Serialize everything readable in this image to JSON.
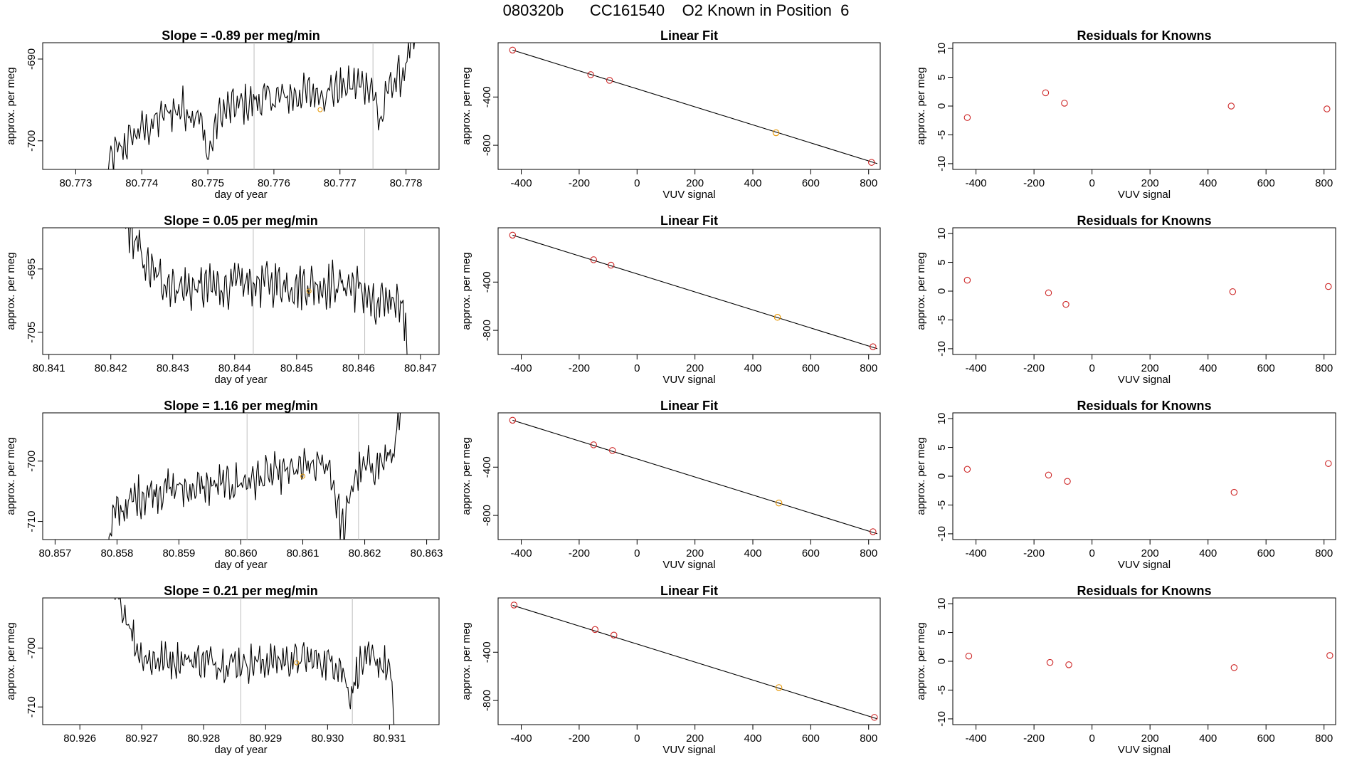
{
  "page": {
    "title": "080320b      CC161540    O2 Known in Position  6"
  },
  "colors": {
    "line": "#000000",
    "axis": "#000000",
    "vline": "#bebebe",
    "known_point": "#cd2626",
    "unknown_point": "#e69500"
  },
  "chart_data": [
    {
      "type": "line",
      "row": 0,
      "col": 0,
      "title": "Slope =  -0.89  per meg/min",
      "xlabel": "day of year",
      "ylabel": "approx. per meg",
      "xlim": [
        80.7725,
        80.7785
      ],
      "ylim": [
        -703.5,
        -688
      ],
      "xticks": [
        80.773,
        80.774,
        80.775,
        80.776,
        80.777,
        80.778
      ],
      "xtick_labels": [
        "80.773",
        "80.774",
        "80.775",
        "80.776",
        "80.777",
        "80.778"
      ],
      "yticks": [
        -690,
        -700
      ],
      "ytick_labels": [
        "-690",
        "-700"
      ],
      "vlines": [
        80.7757,
        80.7775
      ],
      "orange_point": [
        80.7767,
        -696.2
      ],
      "x_start": 80.77345,
      "x_end": 80.77818,
      "series": [
        {
          "name": "trace",
          "profile": [
            [
              0,
              -705
            ],
            [
              0.02,
              -702
            ],
            [
              0.05,
              -701
            ],
            [
              0.1,
              -699
            ],
            [
              0.15,
              -698
            ],
            [
              0.2,
              -696.5
            ],
            [
              0.25,
              -696
            ],
            [
              0.3,
              -697
            ],
            [
              0.33,
              -702
            ],
            [
              0.36,
              -697
            ],
            [
              0.4,
              -696
            ],
            [
              0.45,
              -695.5
            ],
            [
              0.5,
              -695
            ],
            [
              0.55,
              -694.8
            ],
            [
              0.6,
              -694.5
            ],
            [
              0.65,
              -694.2
            ],
            [
              0.7,
              -694
            ],
            [
              0.75,
              -693.5
            ],
            [
              0.8,
              -693.2
            ],
            [
              0.85,
              -693
            ],
            [
              0.88,
              -698
            ],
            [
              0.91,
              -693
            ],
            [
              0.95,
              -692
            ],
            [
              0.97,
              -690
            ],
            [
              1.0,
              -686
            ]
          ],
          "amplitude": 2.2
        }
      ]
    },
    {
      "type": "scatter",
      "row": 0,
      "col": 1,
      "title": "Linear Fit",
      "xlabel": "VUV signal",
      "ylabel": "approx. per meg",
      "xlim": [
        -480,
        840
      ],
      "ylim": [
        -1000,
        50
      ],
      "xticks": [
        -400,
        -200,
        0,
        200,
        400,
        600,
        800
      ],
      "xtick_labels": [
        "-400",
        "-200",
        "0",
        "200",
        "400",
        "600",
        "800"
      ],
      "yticks": [
        -400,
        -800
      ],
      "ytick_labels": [
        "-400",
        "-800"
      ],
      "fit_line": {
        "x": [
          -430,
          830
        ],
        "y": [
          -11,
          -952
        ]
      },
      "points_x": [
        -430,
        -160,
        -95,
        480,
        810
      ],
      "points_y": [
        -11,
        -215,
        -262,
        -696,
        -942
      ],
      "point_colors": [
        "known",
        "known",
        "known",
        "unknown",
        "known"
      ]
    },
    {
      "type": "scatter",
      "row": 0,
      "col": 2,
      "title": "Residuals for Knowns",
      "xlabel": "VUV signal",
      "ylabel": "approx. per meg",
      "xlim": [
        -480,
        840
      ],
      "ylim": [
        -11,
        11
      ],
      "xticks": [
        -400,
        -200,
        0,
        200,
        400,
        600,
        800
      ],
      "xtick_labels": [
        "-400",
        "-200",
        "0",
        "200",
        "400",
        "600",
        "800"
      ],
      "yticks": [
        10,
        5,
        0,
        -5,
        -10
      ],
      "ytick_labels": [
        "10",
        "5",
        "0",
        "-5",
        "-10"
      ],
      "points_x": [
        -430,
        -160,
        -95,
        480,
        810
      ],
      "points_y": [
        -2.0,
        2.3,
        0.5,
        0.0,
        -0.5
      ]
    },
    {
      "type": "line",
      "row": 1,
      "col": 0,
      "title": "Slope =  0.05  per meg/min",
      "xlabel": "day of year",
      "ylabel": "approx. per meg",
      "xlim": [
        80.8409,
        80.8473
      ],
      "ylim": [
        -708.5,
        -688.5
      ],
      "xticks": [
        80.841,
        80.842,
        80.843,
        80.844,
        80.845,
        80.846,
        80.847
      ],
      "xtick_labels": [
        "80.841",
        "80.842",
        "80.843",
        "80.844",
        "80.845",
        "80.846",
        "80.847"
      ],
      "yticks": [
        -695,
        -705
      ],
      "ytick_labels": [
        "-695",
        "-705"
      ],
      "vlines": [
        80.8443,
        80.8461
      ],
      "orange_point": [
        80.8452,
        -698.5
      ],
      "x_start": 80.84222,
      "x_end": 80.84682,
      "series": [
        {
          "name": "trace",
          "profile": [
            [
              0,
              -687
            ],
            [
              0.02,
              -689
            ],
            [
              0.04,
              -691
            ],
            [
              0.07,
              -694
            ],
            [
              0.1,
              -696
            ],
            [
              0.15,
              -697
            ],
            [
              0.2,
              -698
            ],
            [
              0.3,
              -698
            ],
            [
              0.4,
              -697.5
            ],
            [
              0.5,
              -697
            ],
            [
              0.6,
              -697.5
            ],
            [
              0.7,
              -697.5
            ],
            [
              0.8,
              -697.5
            ],
            [
              0.85,
              -699
            ],
            [
              0.88,
              -702
            ],
            [
              0.92,
              -700
            ],
            [
              0.96,
              -699
            ],
            [
              0.98,
              -702
            ],
            [
              1.0,
              -712
            ]
          ],
          "amplitude": 3.2
        }
      ]
    },
    {
      "type": "scatter",
      "row": 1,
      "col": 1,
      "title": "Linear Fit",
      "xlabel": "VUV signal",
      "ylabel": "approx. per meg",
      "xlim": [
        -480,
        840
      ],
      "ylim": [
        -1000,
        50
      ],
      "xticks": [
        -400,
        -200,
        0,
        200,
        400,
        600,
        800
      ],
      "xtick_labels": [
        "-400",
        "-200",
        "0",
        "200",
        "400",
        "600",
        "800"
      ],
      "yticks": [
        -400,
        -800
      ],
      "ytick_labels": [
        "-400",
        "-800"
      ],
      "fit_line": {
        "x": [
          -430,
          830
        ],
        "y": [
          -11,
          -952
        ]
      },
      "points_x": [
        -430,
        -150,
        -90,
        485,
        815
      ],
      "points_y": [
        -11,
        -215,
        -260,
        -692,
        -936
      ],
      "point_colors": [
        "known",
        "known",
        "known",
        "unknown",
        "known"
      ]
    },
    {
      "type": "scatter",
      "row": 1,
      "col": 2,
      "title": "Residuals for Knowns",
      "xlabel": "VUV signal",
      "ylabel": "approx. per meg",
      "xlim": [
        -480,
        840
      ],
      "ylim": [
        -11,
        11
      ],
      "xticks": [
        -400,
        -200,
        0,
        200,
        400,
        600,
        800
      ],
      "xtick_labels": [
        "-400",
        "-200",
        "0",
        "200",
        "400",
        "600",
        "800"
      ],
      "yticks": [
        10,
        5,
        0,
        -5,
        -10
      ],
      "ytick_labels": [
        "10",
        "5",
        "0",
        "-5",
        "-10"
      ],
      "points_x": [
        -430,
        -150,
        -90,
        485,
        815
      ],
      "points_y": [
        1.9,
        -0.3,
        -2.3,
        -0.1,
        0.8
      ]
    },
    {
      "type": "line",
      "row": 2,
      "col": 0,
      "title": "Slope =  1.16  per meg/min",
      "xlabel": "day of year",
      "ylabel": "approx. per meg",
      "xlim": [
        80.8568,
        80.8632
      ],
      "ylim": [
        -713,
        -692
      ],
      "xticks": [
        80.857,
        80.858,
        80.859,
        80.86,
        80.861,
        80.862,
        80.863
      ],
      "xtick_labels": [
        "80.857",
        "80.858",
        "80.859",
        "80.860",
        "80.861",
        "80.862",
        "80.863"
      ],
      "yticks": [
        -700,
        -710
      ],
      "ytick_labels": [
        "-700",
        "-710"
      ],
      "vlines": [
        80.8601,
        80.8619
      ],
      "orange_point": [
        80.861,
        -702.5
      ],
      "x_start": 80.85785,
      "x_end": 80.86262,
      "series": [
        {
          "name": "trace",
          "profile": [
            [
              0,
              -715
            ],
            [
              0.02,
              -709
            ],
            [
              0.05,
              -708
            ],
            [
              0.1,
              -706
            ],
            [
              0.15,
              -705
            ],
            [
              0.2,
              -704.5
            ],
            [
              0.3,
              -704.5
            ],
            [
              0.4,
              -704
            ],
            [
              0.5,
              -703
            ],
            [
              0.6,
              -702
            ],
            [
              0.7,
              -701
            ],
            [
              0.75,
              -700.5
            ],
            [
              0.78,
              -708
            ],
            [
              0.8,
              -712
            ],
            [
              0.83,
              -703
            ],
            [
              0.88,
              -701
            ],
            [
              0.94,
              -700
            ],
            [
              0.97,
              -698
            ],
            [
              1.0,
              -690
            ]
          ],
          "amplitude": 3.0
        }
      ]
    },
    {
      "type": "scatter",
      "row": 2,
      "col": 1,
      "title": "Linear Fit",
      "xlabel": "VUV signal",
      "ylabel": "approx. per meg",
      "xlim": [
        -480,
        840
      ],
      "ylim": [
        -1000,
        50
      ],
      "xticks": [
        -400,
        -200,
        0,
        200,
        400,
        600,
        800
      ],
      "xtick_labels": [
        "-400",
        "-200",
        "0",
        "200",
        "400",
        "600",
        "800"
      ],
      "yticks": [
        -400,
        -800
      ],
      "ytick_labels": [
        "-400",
        "-800"
      ],
      "fit_line": {
        "x": [
          -430,
          830
        ],
        "y": [
          -11,
          -952
        ]
      },
      "points_x": [
        -430,
        -150,
        -85,
        490,
        815
      ],
      "points_y": [
        -11,
        -215,
        -262,
        -697,
        -935
      ],
      "point_colors": [
        "known",
        "known",
        "known",
        "unknown",
        "known"
      ]
    },
    {
      "type": "scatter",
      "row": 2,
      "col": 2,
      "title": "Residuals for Knowns",
      "xlabel": "VUV signal",
      "ylabel": "approx. per meg",
      "xlim": [
        -480,
        840
      ],
      "ylim": [
        -11,
        11
      ],
      "xticks": [
        -400,
        -200,
        0,
        200,
        400,
        600,
        800
      ],
      "xtick_labels": [
        "-400",
        "-200",
        "0",
        "200",
        "400",
        "600",
        "800"
      ],
      "yticks": [
        10,
        5,
        0,
        -5,
        -10
      ],
      "ytick_labels": [
        "10",
        "5",
        "0",
        "-5",
        "-10"
      ],
      "points_x": [
        -430,
        -150,
        -85,
        490,
        815
      ],
      "points_y": [
        1.2,
        0.2,
        -0.9,
        -2.8,
        2.2
      ]
    },
    {
      "type": "line",
      "row": 3,
      "col": 0,
      "title": "Slope =  0.21  per meg/min",
      "xlabel": "day of year",
      "ylabel": "approx. per meg",
      "xlim": [
        80.9254,
        80.9318
      ],
      "ylim": [
        -713,
        -691.5
      ],
      "xticks": [
        80.926,
        80.927,
        80.928,
        80.929,
        80.93,
        80.931
      ],
      "xtick_labels": [
        "80.926",
        "80.927",
        "80.928",
        "80.929",
        "80.930",
        "80.931"
      ],
      "yticks": [
        -700,
        -710
      ],
      "ytick_labels": [
        "-700",
        "-710"
      ],
      "vlines": [
        80.9286,
        80.9304
      ],
      "orange_point": [
        80.9295,
        -702.5
      ],
      "x_start": 80.92655,
      "x_end": 80.9311,
      "series": [
        {
          "name": "trace",
          "profile": [
            [
              0,
              -690
            ],
            [
              0.02,
              -692
            ],
            [
              0.05,
              -695
            ],
            [
              0.08,
              -700
            ],
            [
              0.12,
              -702
            ],
            [
              0.2,
              -702
            ],
            [
              0.3,
              -702
            ],
            [
              0.4,
              -702.5
            ],
            [
              0.5,
              -702.5
            ],
            [
              0.6,
              -702
            ],
            [
              0.7,
              -702
            ],
            [
              0.8,
              -702.5
            ],
            [
              0.84,
              -708
            ],
            [
              0.87,
              -703
            ],
            [
              0.92,
              -702
            ],
            [
              0.96,
              -703
            ],
            [
              0.98,
              -704
            ],
            [
              1.0,
              -716
            ]
          ],
          "amplitude": 2.8
        }
      ]
    },
    {
      "type": "scatter",
      "row": 3,
      "col": 1,
      "title": "Linear Fit",
      "xlabel": "VUV signal",
      "ylabel": "approx. per meg",
      "xlim": [
        -480,
        840
      ],
      "ylim": [
        -1000,
        50
      ],
      "xticks": [
        -400,
        -200,
        0,
        200,
        400,
        600,
        800
      ],
      "xtick_labels": [
        "-400",
        "-200",
        "0",
        "200",
        "400",
        "600",
        "800"
      ],
      "yticks": [
        -400,
        -800
      ],
      "ytick_labels": [
        "-400",
        "-800"
      ],
      "fit_line": {
        "x": [
          -430,
          830
        ],
        "y": [
          -11,
          -952
        ]
      },
      "points_x": [
        -425,
        -145,
        -80,
        490,
        820
      ],
      "points_y": [
        -9,
        -212,
        -258,
        -693,
        -940
      ],
      "point_colors": [
        "known",
        "known",
        "known",
        "unknown",
        "known"
      ]
    },
    {
      "type": "scatter",
      "row": 3,
      "col": 2,
      "title": "Residuals for Knowns",
      "xlabel": "VUV signal",
      "ylabel": "approx. per meg",
      "xlim": [
        -480,
        840
      ],
      "ylim": [
        -11,
        11
      ],
      "xticks": [
        -400,
        -200,
        0,
        200,
        400,
        600,
        800
      ],
      "xtick_labels": [
        "-400",
        "-200",
        "0",
        "200",
        "400",
        "600",
        "800"
      ],
      "yticks": [
        10,
        5,
        0,
        -5,
        -10
      ],
      "ytick_labels": [
        "10",
        "5",
        "0",
        "-5",
        "-10"
      ],
      "points_x": [
        -425,
        -145,
        -80,
        490,
        820
      ],
      "points_y": [
        0.9,
        -0.2,
        -0.6,
        -1.1,
        1.0
      ]
    }
  ]
}
